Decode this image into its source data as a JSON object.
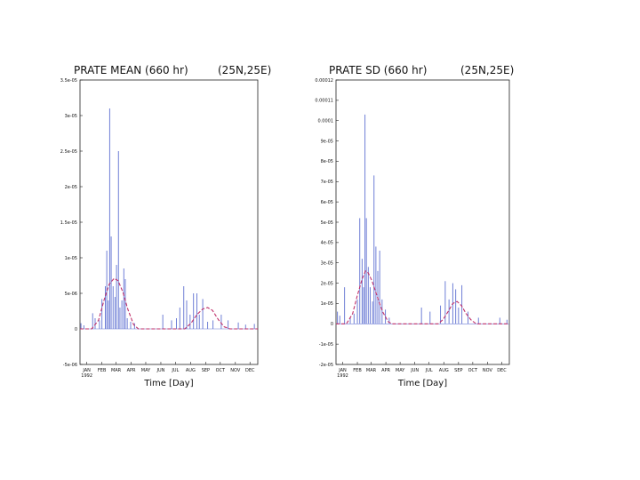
{
  "chart_data": [
    {
      "type": "line",
      "title": "PRATE MEAN (660 hr)",
      "location": "(25N,25E)",
      "xlabel": "Time [Day]",
      "year_label": "1992",
      "months": [
        "JAN",
        "FEB",
        "MAR",
        "APR",
        "MAY",
        "JUN",
        "JUL",
        "AUG",
        "SEP",
        "OCT",
        "NOV",
        "DEC"
      ],
      "xlim": [
        0,
        365
      ],
      "ylim": [
        -5e-06,
        3.5e-05
      ],
      "yticks": [
        {
          "v": -5e-06,
          "label": "-5e-06"
        },
        {
          "v": 0,
          "label": "0"
        },
        {
          "v": 5e-06,
          "label": "5e-06"
        },
        {
          "v": 1e-05,
          "label": "1e-05"
        },
        {
          "v": 1.5e-05,
          "label": "1.5e-05"
        },
        {
          "v": 2e-05,
          "label": "2e-05"
        },
        {
          "v": 2.5e-05,
          "label": "2.5e-05"
        },
        {
          "v": 3e-05,
          "label": "3e-05"
        },
        {
          "v": 3.5e-05,
          "label": "3.5e-05"
        }
      ],
      "colors": {
        "bars": "#6f7fd6",
        "fit": "#c0306a"
      },
      "series": [
        {
          "style": "spikes",
          "points": [
            [
              2,
              8e-07
            ],
            [
              8,
              5e-07
            ],
            [
              26,
              2.2e-06
            ],
            [
              31,
              1.5e-06
            ],
            [
              40,
              1.2e-06
            ],
            [
              45,
              4.2e-06
            ],
            [
              52,
              6e-06
            ],
            [
              55,
              1.1e-05
            ],
            [
              58,
              4e-06
            ],
            [
              61,
              3.1e-05
            ],
            [
              64,
              1.3e-05
            ],
            [
              68,
              6e-06
            ],
            [
              72,
              4.5e-06
            ],
            [
              75,
              9e-06
            ],
            [
              79,
              2.5e-05
            ],
            [
              82,
              3e-06
            ],
            [
              86,
              4e-06
            ],
            [
              90,
              8.5e-06
            ],
            [
              93,
              7e-06
            ],
            [
              97,
              1.5e-06
            ],
            [
              104,
              1e-06
            ],
            [
              112,
              8e-07
            ],
            [
              170,
              2e-06
            ],
            [
              188,
              1.2e-06
            ],
            [
              198,
              1.5e-06
            ],
            [
              205,
              3e-06
            ],
            [
              213,
              6e-06
            ],
            [
              219,
              4e-06
            ],
            [
              226,
              2e-06
            ],
            [
              233,
              5e-06
            ],
            [
              240,
              5e-06
            ],
            [
              245,
              2e-06
            ],
            [
              252,
              4.2e-06
            ],
            [
              262,
              1e-06
            ],
            [
              273,
              1.2e-06
            ],
            [
              290,
              2e-06
            ],
            [
              304,
              1.2e-06
            ],
            [
              325,
              9e-07
            ],
            [
              340,
              6e-07
            ],
            [
              358,
              7e-07
            ]
          ]
        },
        {
          "style": "fit",
          "points": [
            [
              0,
              0
            ],
            [
              24,
              0
            ],
            [
              38,
              1.2e-06
            ],
            [
              50,
              4.2e-06
            ],
            [
              60,
              6.3e-06
            ],
            [
              70,
              7.1e-06
            ],
            [
              78,
              6.8e-06
            ],
            [
              88,
              5.2e-06
            ],
            [
              98,
              2.8e-06
            ],
            [
              110,
              6e-07
            ],
            [
              120,
              0
            ],
            [
              215,
              0
            ],
            [
              228,
              8e-07
            ],
            [
              240,
              2e-06
            ],
            [
              252,
              2.8e-06
            ],
            [
              262,
              3e-06
            ],
            [
              272,
              2.6e-06
            ],
            [
              284,
              1.3e-06
            ],
            [
              296,
              3e-07
            ],
            [
              308,
              0
            ],
            [
              365,
              0
            ]
          ]
        }
      ]
    },
    {
      "type": "line",
      "title": "PRATE SD (660 hr)",
      "location": "(25N,25E)",
      "xlabel": "Time [Day]",
      "year_label": "1992",
      "months": [
        "JAN",
        "FEB",
        "MAR",
        "APR",
        "MAY",
        "JUN",
        "JUL",
        "AUG",
        "SEP",
        "OCT",
        "NOV",
        "DEC"
      ],
      "xlim": [
        0,
        365
      ],
      "ylim": [
        -2e-05,
        0.00012
      ],
      "yticks": [
        {
          "v": -2e-05,
          "label": "-2e-05"
        },
        {
          "v": -1e-05,
          "label": "-1e-05"
        },
        {
          "v": 0,
          "label": "0"
        },
        {
          "v": 1e-05,
          "label": "1e-05"
        },
        {
          "v": 2e-05,
          "label": "2e-05"
        },
        {
          "v": 3e-05,
          "label": "3e-05"
        },
        {
          "v": 4e-05,
          "label": "4e-05"
        },
        {
          "v": 5e-05,
          "label": "5e-05"
        },
        {
          "v": 6e-05,
          "label": "6e-05"
        },
        {
          "v": 7e-05,
          "label": "7e-05"
        },
        {
          "v": 8e-05,
          "label": "8e-05"
        },
        {
          "v": 9e-05,
          "label": "9e-05"
        },
        {
          "v": 0.0001,
          "label": "0.0001"
        },
        {
          "v": 0.00011,
          "label": "0.00011"
        },
        {
          "v": 0.00012,
          "label": "0.00012"
        }
      ],
      "colors": {
        "bars": "#6f7fd6",
        "fit": "#c0306a"
      },
      "series": [
        {
          "style": "spikes",
          "points": [
            [
              3,
              6e-06
            ],
            [
              8,
              4e-06
            ],
            [
              18,
              1.8e-05
            ],
            [
              30,
              3e-06
            ],
            [
              38,
              5e-06
            ],
            [
              45,
              1.2e-05
            ],
            [
              50,
              5.2e-05
            ],
            [
              55,
              3.2e-05
            ],
            [
              58,
              1.8e-05
            ],
            [
              61,
              0.000103
            ],
            [
              64,
              5.2e-05
            ],
            [
              68,
              2.8e-05
            ],
            [
              72,
              1.8e-05
            ],
            [
              77,
              1.1e-05
            ],
            [
              80,
              7.3e-05
            ],
            [
              84,
              3.8e-05
            ],
            [
              88,
              2.6e-05
            ],
            [
              92,
              3.6e-05
            ],
            [
              97,
              1.2e-05
            ],
            [
              104,
              7e-06
            ],
            [
              112,
              3e-06
            ],
            [
              180,
              8e-06
            ],
            [
              198,
              6e-06
            ],
            [
              220,
              9e-06
            ],
            [
              230,
              2.1e-05
            ],
            [
              238,
              1.2e-05
            ],
            [
              246,
              2e-05
            ],
            [
              252,
              1.7e-05
            ],
            [
              258,
              8e-06
            ],
            [
              265,
              1.9e-05
            ],
            [
              278,
              6e-06
            ],
            [
              300,
              3e-06
            ],
            [
              345,
              3e-06
            ],
            [
              360,
              2e-06
            ]
          ]
        },
        {
          "style": "fit",
          "points": [
            [
              0,
              0
            ],
            [
              22,
              0
            ],
            [
              35,
              5e-06
            ],
            [
              45,
              1.4e-05
            ],
            [
              55,
              2.2e-05
            ],
            [
              62,
              2.6e-05
            ],
            [
              68,
              2.5e-05
            ],
            [
              76,
              2.1e-05
            ],
            [
              86,
              1.4e-05
            ],
            [
              98,
              6e-06
            ],
            [
              110,
              1e-06
            ],
            [
              118,
              0
            ],
            [
              215,
              0
            ],
            [
              225,
              2e-06
            ],
            [
              236,
              6e-06
            ],
            [
              246,
              1e-05
            ],
            [
              255,
              1.1e-05
            ],
            [
              264,
              9e-06
            ],
            [
              274,
              5e-06
            ],
            [
              284,
              2e-06
            ],
            [
              295,
              0
            ],
            [
              365,
              0
            ]
          ]
        }
      ]
    }
  ]
}
